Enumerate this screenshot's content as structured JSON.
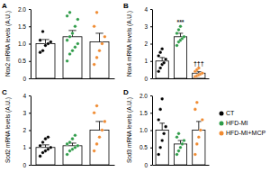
{
  "chart_data": [
    {
      "type": "bar",
      "title": "A",
      "y_label": "Nox2 mRNA levels (A.U.)",
      "categories": [
        "CT",
        "HFD-MI",
        "HFD-MI+MCP"
      ],
      "colors": [
        "#000000",
        "#2e9b48",
        "#f08a30"
      ],
      "values": [
        1.0,
        1.2,
        1.05
      ],
      "errors": [
        0.12,
        0.18,
        0.25
      ],
      "points": [
        [
          0.75,
          0.8,
          0.95,
          1.0,
          1.05,
          1.1,
          1.35
        ],
        [
          0.5,
          0.7,
          0.8,
          0.9,
          1.0,
          1.1,
          1.2,
          1.3,
          1.5,
          1.7,
          1.8,
          1.9
        ],
        [
          0.4,
          0.6,
          0.8,
          1.0,
          1.2,
          1.5,
          1.9
        ]
      ],
      "ylim": [
        0,
        2
      ],
      "yticks": [
        0,
        0.5,
        {
          "value": 1,
          "label": "1.0"
        },
        1.5,
        {
          "value": 2,
          "label": "2.0"
        }
      ],
      "tick_labels": "y"
    },
    {
      "type": "bar",
      "title": "B",
      "y_label": "Nox4 mRNA levels (A.U.)",
      "categories": [
        "CT",
        "HFD-MI",
        "HFD-MI+MCP"
      ],
      "colors": [
        "#000000",
        "#2e9b48",
        "#f08a30"
      ],
      "values": [
        1.0,
        2.4,
        0.3
      ],
      "errors": [
        0.2,
        0.2,
        0.08
      ],
      "points": [
        [
          0.4,
          0.6,
          0.8,
          0.9,
          1.1,
          1.3,
          1.5,
          1.7
        ],
        [
          1.9,
          2.1,
          2.2,
          2.3,
          2.4,
          2.6,
          2.8,
          3.0
        ],
        [
          0.1,
          0.15,
          0.2,
          0.25,
          0.3,
          0.4,
          0.5,
          0.6
        ]
      ],
      "annotations": [
        {
          "category": "HFD-MI",
          "text": "***"
        },
        {
          "category": "HFD-MI+MCP",
          "text": "†††"
        }
      ],
      "ylim": [
        0,
        4
      ],
      "yticks": [
        0,
        1,
        2,
        3,
        4
      ],
      "tick_labels": "y"
    },
    {
      "type": "bar",
      "title": "C",
      "y_label": "Sod2 mRNA levels (A.U.)",
      "categories": [
        "CT",
        "HFD-MI",
        "HFD-MI+MCP"
      ],
      "colors": [
        "#000000",
        "#2e9b48",
        "#f08a30"
      ],
      "values": [
        1.0,
        1.1,
        2.0
      ],
      "errors": [
        0.15,
        0.15,
        0.5
      ],
      "points": [
        [
          0.5,
          0.7,
          0.8,
          0.9,
          1.0,
          1.1,
          1.3,
          1.5,
          1.6
        ],
        [
          0.6,
          0.8,
          0.9,
          1.0,
          1.1,
          1.2,
          1.3,
          1.5,
          1.7
        ],
        [
          0.8,
          1.2,
          1.6,
          2.0,
          2.5,
          3.0,
          3.4
        ]
      ],
      "ylim": [
        0,
        4
      ],
      "yticks": [
        0,
        1,
        2,
        3,
        4
      ],
      "tick_labels": "y"
    },
    {
      "type": "bar",
      "title": "D",
      "y_label": "Sod3 mRNA levels (A.U.)",
      "categories": [
        "CT",
        "HFD-MI",
        "HFD-MI+MCP"
      ],
      "colors": [
        "#000000",
        "#2e9b48",
        "#f08a30"
      ],
      "values": [
        1.0,
        0.6,
        1.0
      ],
      "errors": [
        0.2,
        0.1,
        0.25
      ],
      "points": [
        [
          0.3,
          0.5,
          0.7,
          0.9,
          1.1,
          1.3,
          1.6,
          1.9
        ],
        [
          0.3,
          0.4,
          0.5,
          0.6,
          0.7,
          0.8,
          0.9
        ],
        [
          0.3,
          0.6,
          0.8,
          1.0,
          1.3,
          1.6,
          1.8
        ]
      ],
      "ylim": [
        0,
        2
      ],
      "yticks": [
        0,
        0.5,
        {
          "value": 1,
          "label": "1.0"
        },
        1.5,
        {
          "value": 2,
          "label": "2.0"
        }
      ],
      "tick_labels": "y",
      "legend": "right"
    }
  ]
}
